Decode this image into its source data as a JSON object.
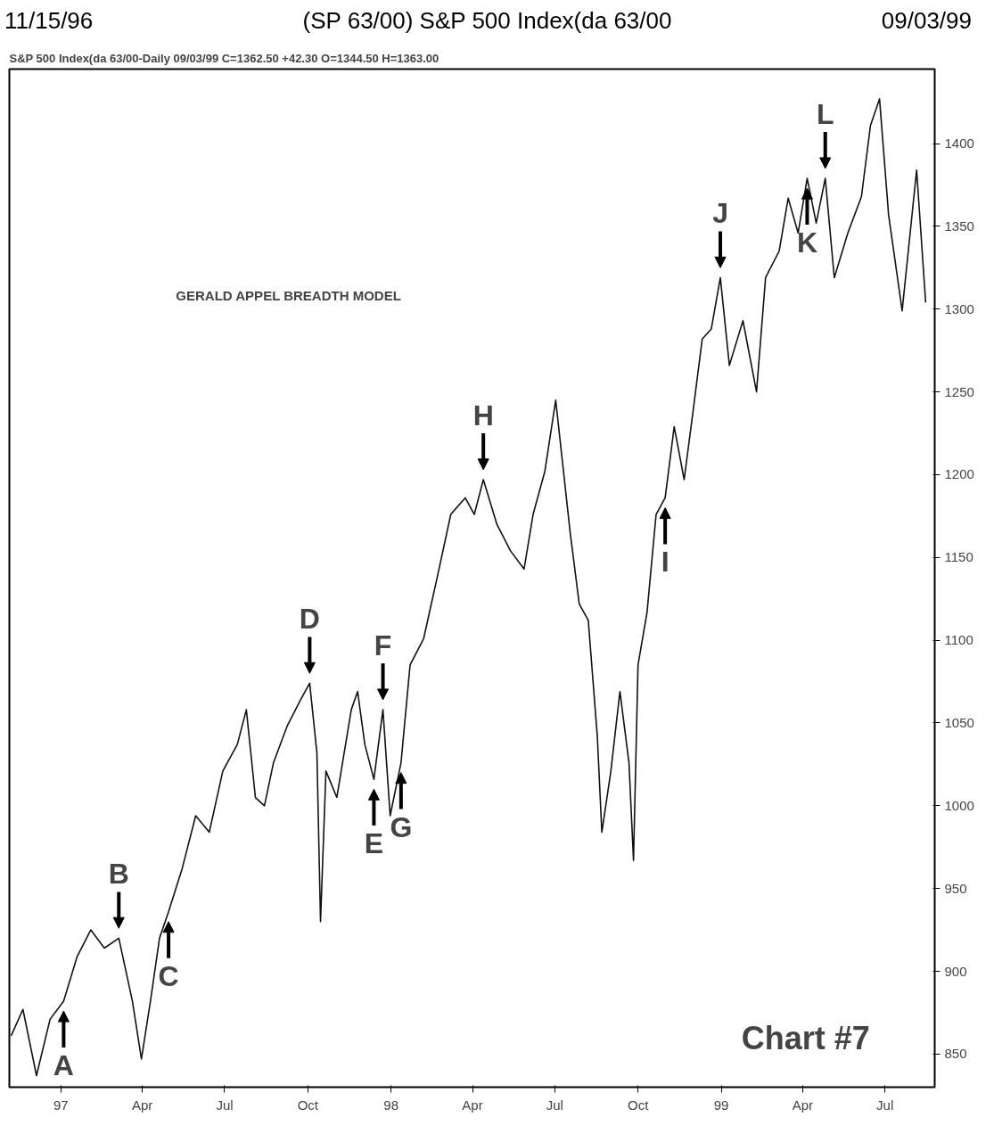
{
  "chart_data": {
    "type": "line",
    "title": "(SP 63/00) S&P 500 Index(da 63/00",
    "subtitle": "S&P 500 Index(da 63/00-Daily   09/03/99  C=1362.50  +42.30  O=1344.50  H=1363.00",
    "annotations": [
      "11/15/96",
      "09/03/99",
      "GERALD APPEL BREADTH MODEL",
      "Chart #7",
      {
        "text": "A",
        "x": "1997-01-04",
        "y": 882
      },
      {
        "text": "B",
        "x": "1997-03-06",
        "y": 920
      },
      {
        "text": "C",
        "x": "1997-04-30",
        "y": 936
      },
      {
        "text": "D",
        "x": "1997-10-03",
        "y": 1074
      },
      {
        "text": "E",
        "x": "1997-12-13",
        "y": 1016
      },
      {
        "text": "F",
        "x": "1997-12-23",
        "y": 1058
      },
      {
        "text": "G",
        "x": "1998-01-12",
        "y": 1026
      },
      {
        "text": "H",
        "x": "1998-04-13",
        "y": 1197
      },
      {
        "text": "I",
        "x": "1998-10-31",
        "y": 1186
      },
      {
        "text": "J",
        "x": "1998-12-31",
        "y": 1319
      },
      {
        "text": "K",
        "x": "1999-04-06",
        "y": 1379
      },
      {
        "text": "L",
        "x": "1999-04-26",
        "y": 1379
      }
    ],
    "x": [
      "1996-11-07",
      "1996-11-20",
      "1996-12-05",
      "1996-12-20",
      "1997-01-04",
      "1997-01-19",
      "1997-02-03",
      "1997-02-18",
      "1997-03-06",
      "1997-03-21",
      "1997-03-31",
      "1997-04-10",
      "1997-04-20",
      "1997-04-30",
      "1997-05-15",
      "1997-05-30",
      "1997-06-14",
      "1997-06-29",
      "1997-07-15",
      "1997-07-25",
      "1997-08-04",
      "1997-08-14",
      "1997-08-24",
      "1997-09-08",
      "1997-09-23",
      "1997-10-03",
      "1997-10-11",
      "1997-10-15",
      "1997-10-21",
      "1997-11-02",
      "1997-11-18",
      "1997-11-25",
      "1997-12-03",
      "1997-12-13",
      "1997-12-23",
      "1997-12-31",
      "1998-01-12",
      "1998-01-22",
      "1998-02-06",
      "1998-02-21",
      "1998-03-08",
      "1998-03-24",
      "1998-04-03",
      "1998-04-13",
      "1998-04-28",
      "1998-05-13",
      "1998-05-28",
      "1998-06-07",
      "1998-06-20",
      "1998-07-02",
      "1998-07-18",
      "1998-07-28",
      "1998-08-07",
      "1998-08-17",
      "1998-08-22",
      "1998-09-01",
      "1998-09-11",
      "1998-09-21",
      "1998-09-26",
      "1998-10-01",
      "1998-10-11",
      "1998-10-21",
      "1998-10-31",
      "1998-11-10",
      "1998-11-21",
      "1998-12-01",
      "1998-12-11",
      "1998-12-21",
      "1998-12-31",
      "1999-01-10",
      "1999-01-25",
      "1999-02-09",
      "1999-02-19",
      "1999-03-06",
      "1999-03-16",
      "1999-03-27",
      "1999-04-06",
      "1999-04-16",
      "1999-04-26",
      "1999-05-06",
      "1999-05-21",
      "1999-06-05",
      "1999-06-15",
      "1999-06-25",
      "1999-07-05",
      "1999-07-20",
      "1999-08-05",
      "1999-08-15"
    ],
    "series": [
      {
        "color": "#111111",
        "values": [
          861,
          877,
          837,
          871,
          882,
          909,
          925,
          914,
          920,
          882,
          847,
          882,
          920,
          936,
          962,
          994,
          984,
          1021,
          1037,
          1058,
          1005,
          1000,
          1026,
          1048,
          1064,
          1074,
          1032,
          930,
          1021,
          1005,
          1058,
          1069,
          1037,
          1016,
          1058,
          994,
          1026,
          1085,
          1101,
          1138,
          1176,
          1186,
          1176,
          1197,
          1170,
          1154,
          1143,
          1176,
          1202,
          1245,
          1165,
          1122,
          1112,
          1042,
          984,
          1021,
          1069,
          1026,
          967,
          1085,
          1117,
          1176,
          1186,
          1229,
          1197,
          1239,
          1282,
          1288,
          1319,
          1266,
          1293,
          1250,
          1319,
          1335,
          1367,
          1346,
          1379,
          1352,
          1379,
          1319,
          1346,
          1368,
          1411,
          1427,
          1357,
          1299,
          1384,
          1304
        ]
      }
    ],
    "xlim": [
      "1996-11-05",
      "1999-08-25"
    ],
    "xticks": [
      {
        "value": "1997-01-01",
        "label": "97"
      },
      {
        "value": "1997-04-01",
        "label": "Apr"
      },
      {
        "value": "1997-07-01",
        "label": "Jul"
      },
      {
        "value": "1997-10-01",
        "label": "Oct"
      },
      {
        "value": "1998-01-01",
        "label": "98"
      },
      {
        "value": "1998-04-01",
        "label": "Apr"
      },
      {
        "value": "1998-07-01",
        "label": "Jul"
      },
      {
        "value": "1998-10-01",
        "label": "Oct"
      },
      {
        "value": "1999-01-01",
        "label": "99"
      },
      {
        "value": "1999-04-01",
        "label": "Apr"
      },
      {
        "value": "1999-07-01",
        "label": "Jul"
      }
    ],
    "ylim": [
      830,
      1445
    ],
    "yticks": [
      850,
      900,
      950,
      1000,
      1050,
      1100,
      1150,
      1200,
      1250,
      1300,
      1350,
      1400
    ]
  }
}
